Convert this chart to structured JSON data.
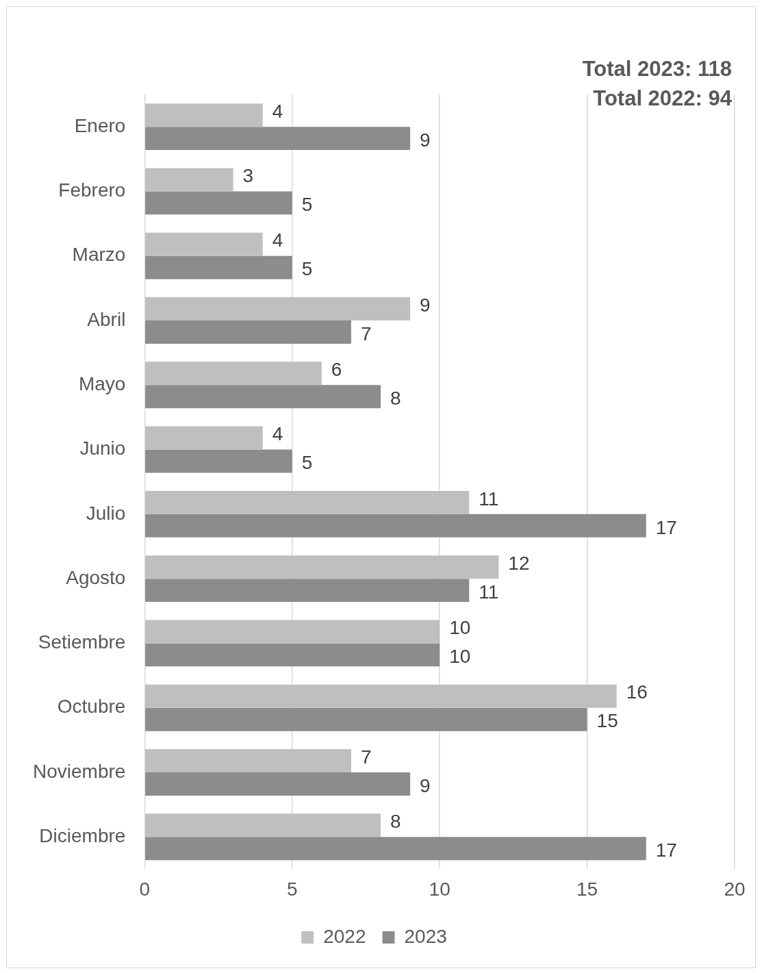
{
  "chart_data": {
    "type": "bar",
    "orientation": "horizontal",
    "categories": [
      "Enero",
      "Febrero",
      "Marzo",
      "Abril",
      "Mayo",
      "Junio",
      "Julio",
      "Agosto",
      "Setiembre",
      "Octubre",
      "Noviembre",
      "Diciembre"
    ],
    "series": [
      {
        "name": "2022",
        "color": "#bfbfbf",
        "values": [
          4,
          3,
          4,
          9,
          6,
          4,
          11,
          12,
          10,
          16,
          7,
          8
        ]
      },
      {
        "name": "2023",
        "color": "#8c8c8c",
        "values": [
          9,
          5,
          5,
          7,
          8,
          5,
          17,
          11,
          10,
          15,
          9,
          17
        ]
      }
    ],
    "xlim": [
      0,
      20
    ],
    "xticks": [
      0,
      5,
      10,
      15,
      20
    ],
    "grid": "x",
    "legend": "bottom",
    "data_labels": true,
    "annotations": [
      "Total 2023: 118",
      "Total 2022: 94"
    ]
  }
}
